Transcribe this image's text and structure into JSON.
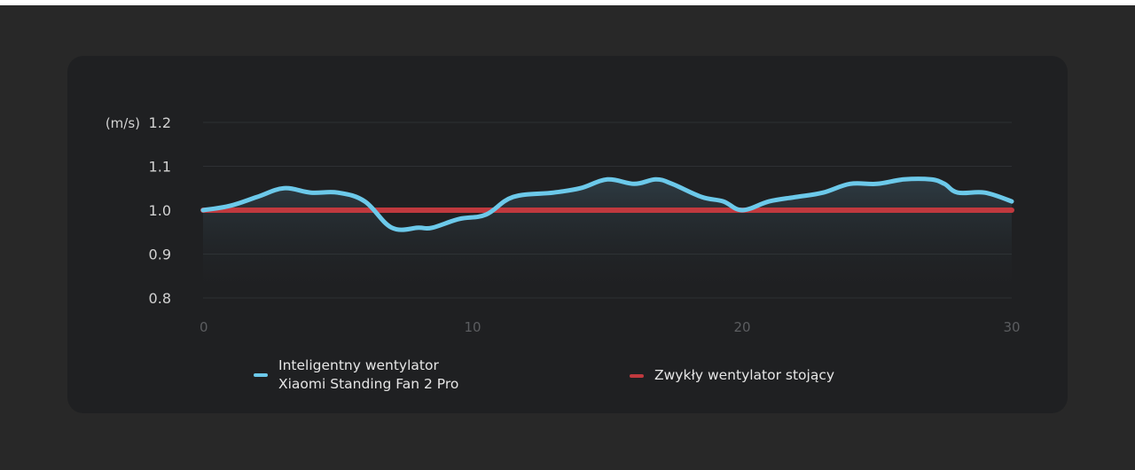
{
  "chart_data": {
    "type": "line",
    "y_unit": "(m/s)",
    "ylim": [
      0.8,
      1.2
    ],
    "yticks": [
      "1.2",
      "1.1",
      "1.0",
      "0.9",
      "0.8"
    ],
    "xlim": [
      0,
      30
    ],
    "xticks": [
      "0",
      "10",
      "20",
      "30"
    ],
    "grid": true,
    "legend_position": "bottom",
    "series": [
      {
        "name_line1": "Inteligentny wentylator",
        "name_line2": "Xiaomi Standing Fan 2 Pro",
        "color": "#6cc9ea",
        "x": [
          0,
          1,
          2,
          3,
          4,
          5,
          6,
          7,
          8,
          8.5,
          9.5,
          10.5,
          11.5,
          13,
          14,
          15,
          16,
          16.8,
          17.4,
          18.5,
          19.3,
          20,
          21,
          22,
          23,
          24,
          25,
          26,
          27,
          27.5,
          28,
          29,
          30
        ],
        "values": [
          1.0,
          1.01,
          1.03,
          1.05,
          1.04,
          1.04,
          1.02,
          0.96,
          0.96,
          0.96,
          0.98,
          0.99,
          1.03,
          1.04,
          1.05,
          1.07,
          1.06,
          1.07,
          1.06,
          1.03,
          1.02,
          1.0,
          1.02,
          1.03,
          1.04,
          1.06,
          1.06,
          1.07,
          1.07,
          1.06,
          1.04,
          1.04,
          1.02
        ]
      },
      {
        "name": "Zwykły wentylator stojący",
        "color": "#c0393e",
        "x": [
          0,
          30
        ],
        "values": [
          1.0,
          1.0
        ]
      }
    ]
  }
}
